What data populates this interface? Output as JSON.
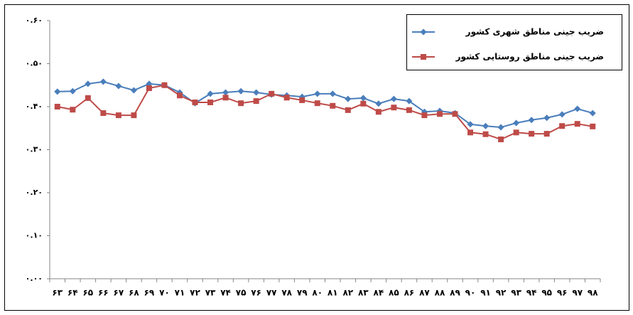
{
  "chart_data": {
    "type": "line",
    "categories": [
      "۶۳",
      "۶۴",
      "۶۵",
      "۶۶",
      "۶۷",
      "۶۸",
      "۶۹",
      "۷۰",
      "۷۱",
      "۷۲",
      "۷۳",
      "۷۴",
      "۷۵",
      "۷۶",
      "۷۷",
      "۷۸",
      "۷۹",
      "۸۰",
      "۸۱",
      "۸۲",
      "۸۳",
      "۸۴",
      "۸۵",
      "۸۶",
      "۸۷",
      "۸۸",
      "۸۹",
      "۹۰",
      "۹۱",
      "۹۲",
      "۹۳",
      "۹۴",
      "۹۵",
      "۹۶",
      "۹۷",
      "۹۸"
    ],
    "series": [
      {
        "name": "ضریب جینی مناطق شهری کشور",
        "color": "#4a7ebb",
        "marker": "diamond",
        "values": [
          0.435,
          0.436,
          0.453,
          0.458,
          0.448,
          0.438,
          0.453,
          0.45,
          0.433,
          0.408,
          0.43,
          0.433,
          0.436,
          0.433,
          0.428,
          0.426,
          0.423,
          0.43,
          0.43,
          0.418,
          0.42,
          0.407,
          0.418,
          0.413,
          0.388,
          0.39,
          0.385,
          0.359,
          0.355,
          0.352,
          0.362,
          0.369,
          0.374,
          0.382,
          0.395,
          0.385
        ]
      },
      {
        "name": "ضریب جینی مناطق روستایی کشور",
        "color": "#be4b48",
        "marker": "square",
        "values": [
          0.4,
          0.393,
          0.42,
          0.385,
          0.38,
          0.38,
          0.443,
          0.45,
          0.426,
          0.41,
          0.41,
          0.421,
          0.408,
          0.413,
          0.43,
          0.421,
          0.415,
          0.408,
          0.402,
          0.392,
          0.407,
          0.388,
          0.398,
          0.392,
          0.38,
          0.383,
          0.383,
          0.34,
          0.336,
          0.324,
          0.34,
          0.337,
          0.337,
          0.355,
          0.36,
          0.354
        ]
      }
    ],
    "ylim": [
      0,
      0.6
    ],
    "yticks": [
      {
        "value": 0,
        "label": "۰.۰۰"
      },
      {
        "value": 0.1,
        "label": "۰.۱۰"
      },
      {
        "value": 0.2,
        "label": "۰.۲۰"
      },
      {
        "value": 0.3,
        "label": "۰.۳۰"
      },
      {
        "value": 0.4,
        "label": "۰.۴۰"
      },
      {
        "value": 0.5,
        "label": "۰.۵۰"
      },
      {
        "value": 0.6,
        "label": "۰.۶۰"
      }
    ],
    "grid": false,
    "legend": "top-right"
  }
}
